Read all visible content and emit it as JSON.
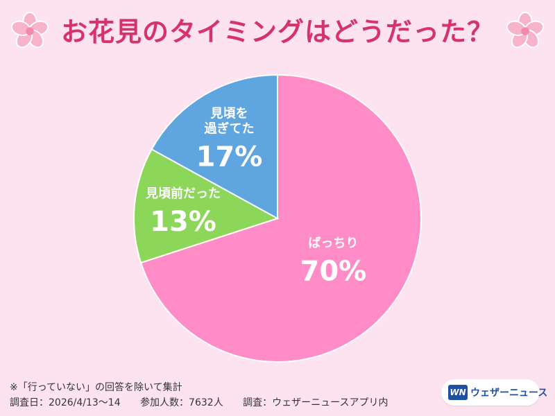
{
  "chart_data": {
    "type": "pie",
    "title": "お花見のタイミングはどうだった？",
    "slices": [
      {
        "label": "ばっちり",
        "value": 70,
        "display": "70%",
        "color": "#ff8cc6"
      },
      {
        "label": "見頃前だった",
        "value": 13,
        "display": "13%",
        "color": "#8cd65a"
      },
      {
        "label": "見頃を\n過ぎてた",
        "value": 17,
        "display": "17%",
        "color": "#5fa6e0"
      }
    ]
  },
  "footnotes": {
    "note": "※「行っていない」の回答を除いて集計",
    "survey_date": "調査日：2026/4/13～14",
    "participants": "参加人数：7632人",
    "surveyor": "調査：ウェザーニュースアプリ内"
  },
  "logo": {
    "mark": "WN",
    "text": "ウェザーニュース"
  },
  "colors": {
    "background": "#fde3f0",
    "title": "#d6336c",
    "blossom": "#f7b3c9"
  },
  "icons": [
    "cherry-blossom-icon",
    "cherry-blossom-icon"
  ]
}
